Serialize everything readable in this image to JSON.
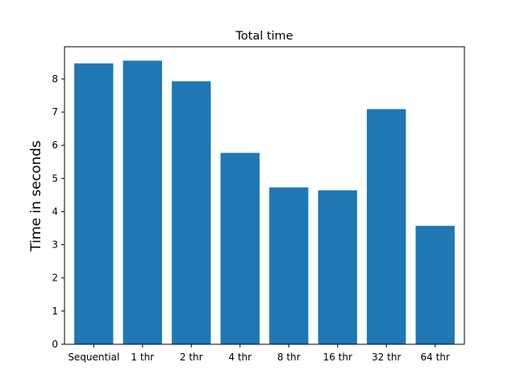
{
  "chart_data": {
    "type": "bar",
    "title": "Total time",
    "xlabel": "",
    "ylabel": "Time in seconds",
    "categories": [
      "Sequential",
      "1 thr",
      "2 thr",
      "4 thr",
      "8 thr",
      "16 thr",
      "32 thr",
      "64 thr"
    ],
    "values": [
      8.47,
      8.55,
      7.93,
      5.77,
      4.73,
      4.64,
      7.09,
      3.57
    ],
    "ylim": [
      0,
      8.97
    ],
    "yticks": [
      0,
      1,
      2,
      3,
      4,
      5,
      6,
      7,
      8
    ],
    "bar_color": "#1f77b4",
    "grid": false,
    "legend": "none"
  }
}
